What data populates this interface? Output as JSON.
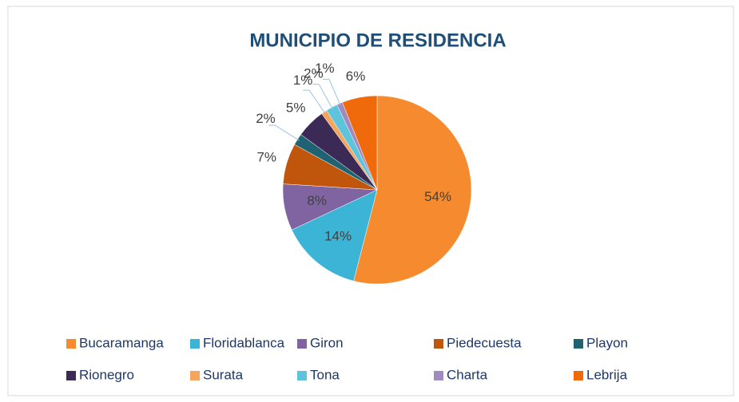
{
  "chart_data": {
    "type": "pie",
    "title": "MUNICIPIO DE RESIDENCIA",
    "categories": [
      "Bucaramanga",
      "Floridablanca",
      "Giron",
      "Piedecuesta",
      "Playon",
      "Rionegro",
      "Surata",
      "Tona",
      "Charta",
      "Lebrija"
    ],
    "values": [
      54,
      14,
      8,
      7,
      2,
      5,
      1,
      2,
      1,
      6
    ],
    "value_labels": [
      "54%",
      "14%",
      "8%",
      "7%",
      "2%",
      "5%",
      "1%",
      "2%",
      "1%",
      "6%"
    ],
    "colors": [
      "#f58b2e",
      "#3cb4d6",
      "#8064a2",
      "#c0560c",
      "#1f6372",
      "#3b2a55",
      "#f7a55d",
      "#5ec4dc",
      "#9f8bc0",
      "#f06a0c"
    ],
    "legend": "bottom"
  }
}
